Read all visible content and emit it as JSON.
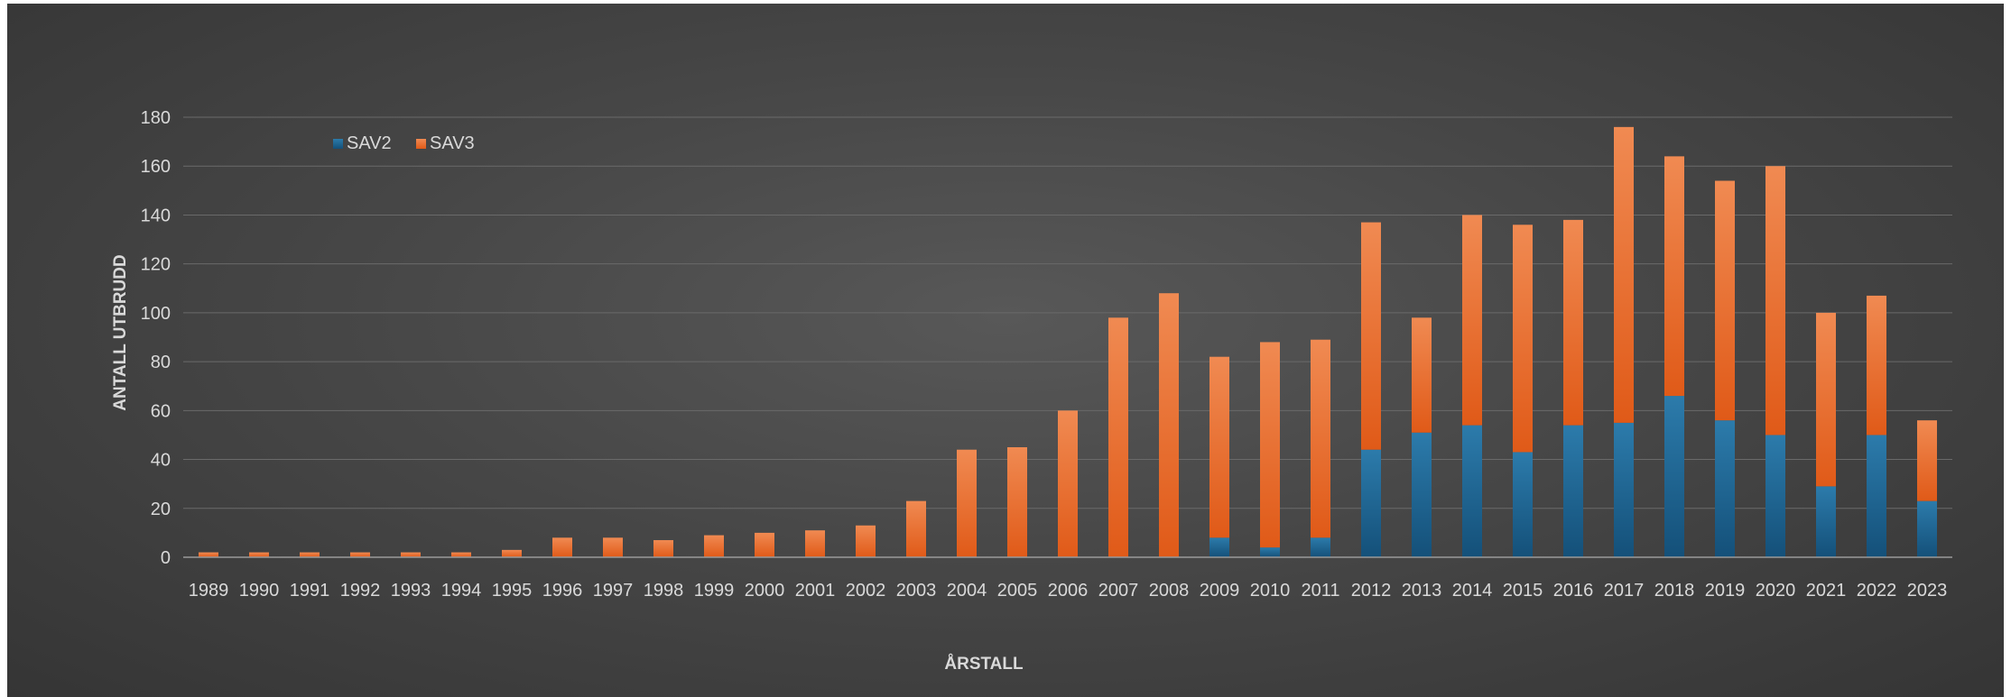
{
  "chart_data": {
    "type": "bar",
    "stacked": true,
    "title": "",
    "xlabel": "ÅRSTALL",
    "ylabel": "ANTALL UTBRUDD",
    "ylim": [
      0,
      180
    ],
    "yticks": [
      0,
      20,
      40,
      60,
      80,
      100,
      120,
      140,
      160,
      180
    ],
    "grid": true,
    "legend_position": "top-left",
    "categories": [
      "1989",
      "1990",
      "1991",
      "1992",
      "1993",
      "1994",
      "1995",
      "1996",
      "1997",
      "1998",
      "1999",
      "2000",
      "2001",
      "2002",
      "2003",
      "2004",
      "2005",
      "2006",
      "2007",
      "2008",
      "2009",
      "2010",
      "2011",
      "2012",
      "2013",
      "2014",
      "2015",
      "2016",
      "2017",
      "2018",
      "2019",
      "2020",
      "2021",
      "2022",
      "2023"
    ],
    "series": [
      {
        "name": "SAV2",
        "color": "#1f5f8a",
        "values": [
          0,
          0,
          0,
          0,
          0,
          0,
          0,
          0,
          0,
          0,
          0,
          0,
          0,
          0,
          0,
          0,
          0,
          0,
          0,
          0,
          8,
          4,
          8,
          44,
          51,
          54,
          43,
          54,
          55,
          66,
          56,
          50,
          29,
          50,
          23
        ]
      },
      {
        "name": "SAV3",
        "color": "#e8692d",
        "values": [
          2,
          2,
          2,
          2,
          2,
          2,
          3,
          8,
          8,
          7,
          9,
          10,
          11,
          13,
          23,
          44,
          45,
          60,
          98,
          108,
          74,
          84,
          81,
          93,
          47,
          86,
          93,
          84,
          121,
          98,
          98,
          110,
          71,
          57,
          33
        ]
      }
    ]
  }
}
